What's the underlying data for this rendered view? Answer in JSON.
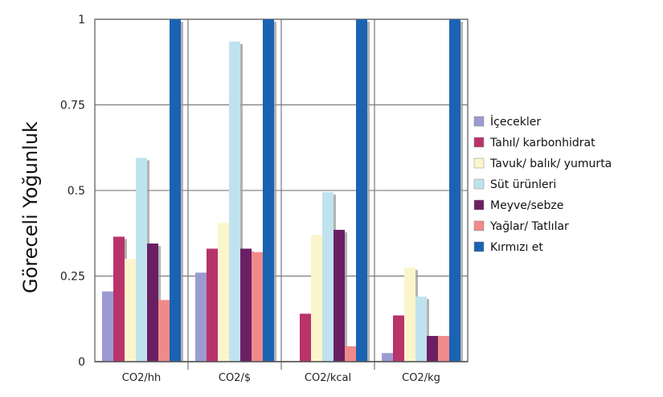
{
  "chart_data": {
    "type": "bar",
    "title": "",
    "xlabel": "",
    "ylabel": "Göreceli Yoğunluk",
    "ylim": [
      0,
      1
    ],
    "yticks": [
      {
        "value": 0,
        "label": "0"
      },
      {
        "value": 0.25,
        "label": "0.25"
      },
      {
        "value": 0.5,
        "label": "0.5"
      },
      {
        "value": 0.75,
        "label": "0.75"
      },
      {
        "value": 1,
        "label": "1"
      }
    ],
    "categories": [
      "CO2/hh",
      "CO2/$",
      "CO2/kcal",
      "CO2/kg"
    ],
    "legend_position": "right",
    "grid": true,
    "series": [
      {
        "name": "İçecekler",
        "color": "#9b9bd2",
        "values": [
          0.205,
          0.26,
          0,
          0.025
        ]
      },
      {
        "name": "Tahıl/ karbonhidrat",
        "color": "#b8336a",
        "values": [
          0.365,
          0.33,
          0.14,
          0.135
        ]
      },
      {
        "name": "Tavuk/ balık/ yumurta",
        "color": "#fbf5cc",
        "values": [
          0.3,
          0.405,
          0.37,
          0.275
        ]
      },
      {
        "name": "Süt ürünleri",
        "color": "#bfe3ee",
        "values": [
          0.595,
          0.935,
          0.495,
          0.19
        ]
      },
      {
        "name": "Meyve/sebze",
        "color": "#6b1f63",
        "values": [
          0.345,
          0.33,
          0.385,
          0.075
        ]
      },
      {
        "name": "Yağlar/ Tatlılar",
        "color": "#f08a8a",
        "values": [
          0.18,
          0.32,
          0.045,
          0.075
        ]
      },
      {
        "name": "Kırmızı et",
        "color": "#1a63b3",
        "values": [
          1,
          1,
          1,
          1
        ]
      }
    ]
  }
}
